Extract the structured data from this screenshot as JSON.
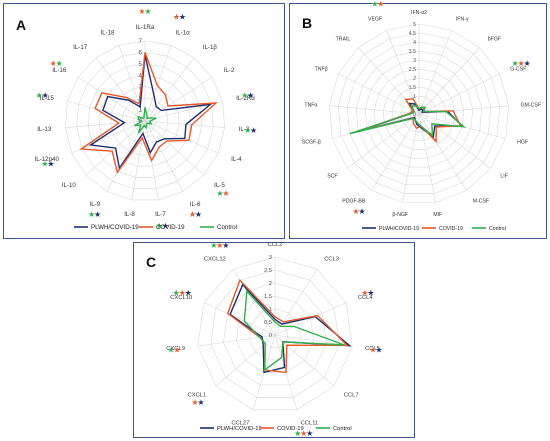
{
  "chart_data": [
    {
      "type": "radar",
      "panel_letter": "A",
      "categories": [
        "IL-1Ra",
        "IL-1α",
        "IL-1β",
        "IL-2",
        "IL-2Rα",
        "IL-3",
        "IL-4",
        "IL-5",
        "IL-6",
        "IL-7",
        "IL-8",
        "IL-9",
        "IL-10",
        "IL-12p40",
        "IL-13",
        "IL-15",
        "IL-16",
        "IL-17",
        "IL-18"
      ],
      "rmax": 7,
      "ticks": [
        0,
        1,
        2,
        3,
        4,
        5,
        6,
        7
      ],
      "tick_labels": [
        "0",
        "1",
        "2",
        "3",
        "4",
        "5",
        "6",
        "7"
      ],
      "series": [
        {
          "name": "PLWH/COVID-19",
          "color": "#1f2d6e",
          "values": [
            5.8,
            2.4,
            1.6,
            1.7,
            5.9,
            3.6,
            3.8,
            2.3,
            2.1,
            2.8,
            1.1,
            4.7,
            3.5,
            5.2,
            1.8,
            3.8,
            3.9,
            2.3,
            1.3
          ]
        },
        {
          "name": "COVID-19",
          "color": "#e8582a",
          "values": [
            6.0,
            3.3,
            2.9,
            2.4,
            6.4,
            4.1,
            4.2,
            2.6,
            2.6,
            3.5,
            1.5,
            5.1,
            3.9,
            6.1,
            2.3,
            4.5,
            4.5,
            2.6,
            1.6
          ]
        },
        {
          "name": "Control",
          "color": "#2fb04d",
          "values": [
            1.2,
            0.5,
            0.3,
            0.5,
            1.0,
            0.4,
            0.6,
            0.3,
            0.3,
            0.6,
            0.4,
            1.2,
            0.5,
            1.0,
            0.3,
            0.6,
            0.7,
            0.3,
            0.3
          ]
        }
      ],
      "markers": [
        {
          "index": 1,
          "symbols": [
            {
              "s": "★",
              "c": "#e8582a"
            },
            {
              "s": "★",
              "c": "#1f2d6e"
            }
          ]
        },
        {
          "index": 0,
          "symbols": [
            {
              "s": "★",
              "c": "#e8582a"
            },
            {
              "s": "★",
              "c": "#2fb04d"
            }
          ]
        },
        {
          "index": 4,
          "symbols": [
            {
              "s": "★",
              "c": "#2fb04d"
            },
            {
              "s": "★",
              "c": "#1f2d6e"
            }
          ]
        },
        {
          "index": 5,
          "symbols": [
            {
              "s": "★",
              "c": "#2fb04d"
            },
            {
              "s": "★",
              "c": "#1f2d6e"
            }
          ]
        },
        {
          "index": 7,
          "symbols": [
            {
              "s": "★",
              "c": "#2fb04d"
            },
            {
              "s": "★",
              "c": "#e8582a"
            }
          ]
        },
        {
          "index": 8,
          "symbols": [
            {
              "s": "★",
              "c": "#e8582a"
            },
            {
              "s": "★",
              "c": "#1f2d6e"
            }
          ]
        },
        {
          "index": 9,
          "symbols": [
            {
              "s": "★",
              "c": "#2fb04d"
            },
            {
              "s": "★",
              "c": "#1f2d6e"
            }
          ]
        },
        {
          "index": 11,
          "symbols": [
            {
              "s": "★",
              "c": "#2fb04d"
            },
            {
              "s": "★",
              "c": "#1f2d6e"
            }
          ]
        },
        {
          "index": 13,
          "symbols": [
            {
              "s": "★",
              "c": "#2fb04d"
            },
            {
              "s": "★",
              "c": "#1f2d6e"
            }
          ]
        },
        {
          "index": 15,
          "symbols": [
            {
              "s": "★",
              "c": "#2fb04d"
            },
            {
              "s": "★",
              "c": "#1f2d6e"
            }
          ]
        },
        {
          "index": 16,
          "symbols": [
            {
              "s": "★",
              "c": "#e8582a"
            },
            {
              "s": "★",
              "c": "#2fb04d"
            }
          ]
        }
      ],
      "legend": [
        "PLWH/COVID-19",
        "COVID-19",
        "Control"
      ]
    },
    {
      "type": "radar",
      "panel_letter": "B",
      "categories": [
        "IFN-α2",
        "IFN-γ",
        "bFGF",
        "G-CSF",
        "GM-CSF",
        "HGF",
        "LIF",
        "M-CSF",
        "MIF",
        "β-NGF",
        "PDGF-BB",
        "SCF",
        "SCGF-β",
        "TNFα",
        "TNFβ",
        "TRAIL",
        "VEGF"
      ],
      "rmax": 5,
      "ticks": [
        0,
        0.5,
        1,
        1.5,
        2,
        2.5,
        3,
        3.5,
        4,
        4.5,
        5
      ],
      "tick_labels": [
        "0",
        "0.5",
        "1",
        "1.5",
        "2",
        "2.5",
        "3",
        "3.5",
        "4",
        "4.5",
        "5"
      ],
      "series": [
        {
          "name": "PLWH/COVID-19",
          "color": "#1f2d6e",
          "values": [
            0.2,
            0.3,
            0.3,
            0.2,
            1.6,
            2.5,
            1.1,
            1.5,
            0.8,
            0.6,
            0.4,
            0.3,
            3.6,
            0.4,
            0.3,
            0.8,
            0.6
          ]
        },
        {
          "name": "COVID-19",
          "color": "#e8582a",
          "values": [
            0.3,
            0.4,
            0.4,
            0.3,
            1.9,
            2.4,
            1.2,
            1.8,
            0.7,
            0.8,
            0.6,
            0.4,
            3.5,
            0.5,
            0.4,
            1.1,
            0.9
          ]
        },
        {
          "name": "Control",
          "color": "#2fb04d",
          "values": [
            0.3,
            0.4,
            0.5,
            0.3,
            1.5,
            2.6,
            0.9,
            1.4,
            0.7,
            0.5,
            0.4,
            0.4,
            4.0,
            0.4,
            0.3,
            0.6,
            0.5
          ]
        }
      ],
      "markers": [
        {
          "index": 16,
          "symbols": [
            {
              "s": "★",
              "c": "#2fb04d"
            },
            {
              "s": "★",
              "c": "#e8582a"
            }
          ]
        },
        {
          "index": 3,
          "symbols": [
            {
              "s": "★",
              "c": "#2fb04d"
            },
            {
              "s": "★",
              "c": "#e8582a"
            },
            {
              "s": "★",
              "c": "#1f2d6e"
            }
          ]
        },
        {
          "index": 10,
          "symbols": [
            {
              "s": "★",
              "c": "#e8582a"
            },
            {
              "s": "★",
              "c": "#1f2d6e"
            }
          ]
        }
      ],
      "legend": [
        "PLWH/COVID-19",
        "COVID-19",
        "Control"
      ]
    },
    {
      "type": "radar",
      "panel_letter": "C",
      "categories": [
        "CCL2",
        "CCL3",
        "CCL4",
        "CCL5",
        "CCL7",
        "CCL11",
        "CCL27",
        "CXCL1",
        "CXCL9",
        "CXCL10",
        "CXCL12"
      ],
      "rmax": 3,
      "ticks": [
        0,
        0.5,
        1,
        1.5,
        2,
        2.5,
        3
      ],
      "tick_labels": [
        "0",
        "0.5",
        "1",
        "1.5",
        "2",
        "2.5",
        "3"
      ],
      "series": [
        {
          "name": "PLWH/COVID-19",
          "color": "#1f2d6e",
          "values": [
            0.6,
            0.5,
            1.7,
            2.9,
            0.4,
            1.3,
            1.5,
            0.6,
            0.5,
            1.9,
            2.3
          ]
        },
        {
          "name": "COVID-19",
          "color": "#e8582a",
          "values": [
            0.7,
            0.6,
            1.8,
            2.8,
            0.6,
            1.5,
            1.4,
            0.5,
            0.6,
            2.0,
            2.5
          ]
        },
        {
          "name": "Control",
          "color": "#2fb04d",
          "values": [
            0.5,
            0.4,
            0.8,
            2.7,
            0.4,
            0.9,
            1.4,
            0.5,
            0.6,
            1.3,
            2.0
          ]
        }
      ],
      "markers": [
        {
          "index": 10,
          "symbols": [
            {
              "s": "★",
              "c": "#2fb04d"
            },
            {
              "s": "★",
              "c": "#e8582a"
            },
            {
              "s": "★",
              "c": "#1f2d6e"
            }
          ]
        },
        {
          "index": 9,
          "symbols": [
            {
              "s": "★",
              "c": "#2fb04d"
            },
            {
              "s": "★",
              "c": "#e8582a"
            },
            {
              "s": "★",
              "c": "#1f2d6e"
            }
          ]
        },
        {
          "index": 8,
          "symbols": [
            {
              "s": "★",
              "c": "#2fb04d"
            },
            {
              "s": "★",
              "c": "#e8582a"
            }
          ]
        },
        {
          "index": 7,
          "symbols": [
            {
              "s": "★",
              "c": "#e8582a"
            },
            {
              "s": "★",
              "c": "#1f2d6e"
            }
          ]
        },
        {
          "index": 2,
          "symbols": [
            {
              "s": "★",
              "c": "#e8582a"
            },
            {
              "s": "★",
              "c": "#1f2d6e"
            }
          ]
        },
        {
          "index": 3,
          "symbols": [
            {
              "s": "★",
              "c": "#e8582a"
            },
            {
              "s": "★",
              "c": "#1f2d6e"
            }
          ]
        },
        {
          "index": 5,
          "symbols": [
            {
              "s": "★",
              "c": "#2fb04d"
            },
            {
              "s": "★",
              "c": "#e8582a"
            },
            {
              "s": "★",
              "c": "#1f2d6e"
            }
          ]
        }
      ],
      "legend": [
        "PLWH/COVID-19",
        "COVID-19",
        "Control"
      ]
    }
  ]
}
